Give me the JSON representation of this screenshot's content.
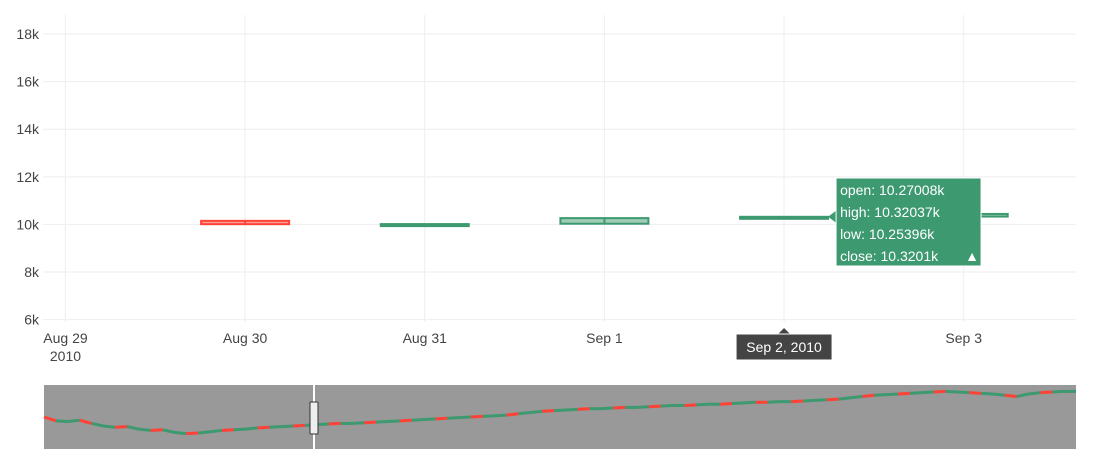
{
  "chart_data": {
    "type": "candlestick",
    "title": "",
    "xlabel": "",
    "ylabel": "",
    "y_ticks": [
      "6k",
      "8k",
      "10k",
      "12k",
      "14k",
      "16k",
      "18k"
    ],
    "y_tick_values": [
      6000,
      8000,
      10000,
      12000,
      14000,
      16000,
      18000
    ],
    "ylim": [
      5900,
      18800
    ],
    "x_ticks": [
      "Aug 29",
      "Aug 30",
      "Aug 31",
      "Sep 1",
      "Sep 2",
      "Sep 3"
    ],
    "x_year_label": "2010",
    "xlim": [
      "2010-08-28T21:00",
      "2010-09-03T15:00"
    ],
    "grid": true,
    "increasing_color": "#3d9970",
    "decreasing_color": "#ff4136",
    "candles": [
      {
        "date": "2010-08-30",
        "open": 10150,
        "high": 10155,
        "low": 10005,
        "close": 10010
      },
      {
        "date": "2010-08-31",
        "open": 9995,
        "high": 10020,
        "low": 9990,
        "close": 10014
      },
      {
        "date": "2010-09-01",
        "open": 10030,
        "high": 10275,
        "low": 10020,
        "close": 10265
      },
      {
        "date": "2010-09-02",
        "open": 10270.08,
        "high": 10320.37,
        "low": 10253.96,
        "close": 10320.1
      },
      {
        "date": "2010-09-03",
        "open": 10330,
        "high": 10450,
        "low": 10320,
        "close": 10440
      }
    ]
  },
  "hover": {
    "x_label": "Sep 2, 2010",
    "lines": [
      "open: 10.27008k",
      "high: 10.32037k",
      "low: 10.25396k",
      "close: 10.3201k"
    ],
    "direction_symbol": "▲"
  },
  "rangeslider": {
    "background": "#999999",
    "trace": [
      0.5,
      0.44,
      0.43,
      0.45,
      0.4,
      0.36,
      0.34,
      0.35,
      0.31,
      0.29,
      0.3,
      0.26,
      0.24,
      0.25,
      0.27,
      0.29,
      0.3,
      0.31,
      0.33,
      0.34,
      0.35,
      0.36,
      0.37,
      0.38,
      0.39,
      0.4,
      0.4,
      0.41,
      0.42,
      0.43,
      0.44,
      0.45,
      0.46,
      0.47,
      0.48,
      0.49,
      0.5,
      0.51,
      0.52,
      0.53,
      0.55,
      0.57,
      0.59,
      0.6,
      0.61,
      0.62,
      0.63,
      0.63,
      0.64,
      0.65,
      0.65,
      0.66,
      0.67,
      0.68,
      0.68,
      0.69,
      0.7,
      0.7,
      0.71,
      0.72,
      0.73,
      0.73,
      0.74,
      0.74,
      0.75,
      0.76,
      0.77,
      0.78,
      0.8,
      0.82,
      0.84,
      0.85,
      0.86,
      0.87,
      0.88,
      0.89,
      0.9,
      0.89,
      0.88,
      0.87,
      0.86,
      0.84,
      0.82,
      0.86,
      0.88,
      0.89,
      0.9,
      0.9
    ]
  }
}
